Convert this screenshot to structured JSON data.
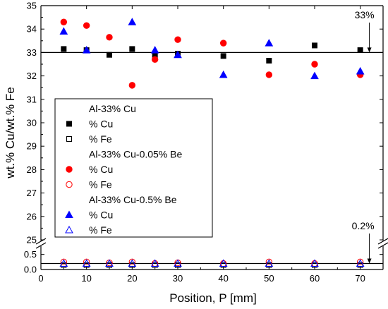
{
  "chart_data": {
    "type": "scatter",
    "title": "",
    "xlabel": "Position, P [mm]",
    "ylabel": "wt.% Cu/wt.% Fe",
    "xlim": [
      0,
      75
    ],
    "x_ticks": [
      0,
      10,
      20,
      30,
      40,
      50,
      60,
      70
    ],
    "ylim_upper": [
      25,
      35
    ],
    "y_ticks_upper": [
      25,
      26,
      27,
      28,
      29,
      30,
      31,
      32,
      33,
      34,
      35
    ],
    "ylim_lower": [
      0,
      0.75
    ],
    "y_ticks_lower": [
      0.0,
      0.5
    ],
    "y_tick_labels_lower": [
      "0.0",
      "0.5"
    ],
    "axis_break": "between 0.75 and 25",
    "reference_lines": [
      {
        "y": 33,
        "label": "33%"
      },
      {
        "y": 0.2,
        "label": "0.2%"
      }
    ],
    "annotations": [
      "33%",
      "0.2%"
    ],
    "legend_position": "left-middle",
    "series": [
      {
        "group": "Al-33% Cu",
        "name": "% Cu",
        "marker": "square-filled",
        "color": "#000000",
        "x": [
          5,
          10,
          15,
          20,
          25,
          30,
          40,
          50,
          60,
          70
        ],
        "y": [
          33.15,
          33.1,
          32.9,
          33.15,
          32.85,
          32.95,
          32.85,
          32.65,
          33.3,
          33.1
        ]
      },
      {
        "group": "Al-33% Cu",
        "name": "% Fe",
        "marker": "square-open",
        "color": "#000000",
        "x": [
          5,
          10,
          15,
          20,
          25,
          30,
          40,
          50,
          60,
          70
        ],
        "y": [
          0.15,
          0.15,
          0.15,
          0.15,
          0.15,
          0.15,
          0.15,
          0.15,
          0.15,
          0.15
        ]
      },
      {
        "group": "Al-33% Cu-0.05% Be",
        "name": "% Cu",
        "marker": "circle-filled",
        "color": "#ff0000",
        "x": [
          5,
          10,
          15,
          20,
          25,
          30,
          40,
          50,
          60,
          70
        ],
        "y": [
          34.3,
          34.15,
          33.65,
          31.6,
          32.7,
          33.55,
          33.4,
          32.05,
          32.5,
          32.05
        ]
      },
      {
        "group": "Al-33% Cu-0.05% Be",
        "name": "% Fe",
        "marker": "circle-open",
        "color": "#ff0000",
        "x": [
          5,
          10,
          15,
          20,
          25,
          30,
          40,
          50,
          60,
          70
        ],
        "y": [
          0.25,
          0.25,
          0.22,
          0.25,
          0.2,
          0.22,
          0.2,
          0.25,
          0.2,
          0.25
        ]
      },
      {
        "group": "Al-33% Cu-0.5% Be",
        "name": "% Cu",
        "marker": "triangle-filled",
        "color": "#0000ff",
        "x": [
          5,
          10,
          20,
          25,
          30,
          40,
          50,
          60,
          70
        ],
        "y": [
          33.9,
          33.1,
          34.3,
          33.1,
          32.9,
          32.05,
          33.4,
          32.0,
          32.2
        ]
      },
      {
        "group": "Al-33% Cu-0.5% Be",
        "name": "% Fe",
        "marker": "triangle-open",
        "color": "#0000ff",
        "x": [
          5,
          10,
          15,
          20,
          25,
          30,
          40,
          50,
          60,
          70
        ],
        "y": [
          0.2,
          0.2,
          0.2,
          0.2,
          0.2,
          0.2,
          0.2,
          0.2,
          0.2,
          0.2
        ]
      }
    ],
    "legend": [
      {
        "type": "header",
        "text": "Al-33% Cu"
      },
      {
        "type": "entry",
        "series": 0,
        "text": "% Cu"
      },
      {
        "type": "entry",
        "series": 1,
        "text": "% Fe"
      },
      {
        "type": "header",
        "text": "Al-33% Cu-0.05% Be"
      },
      {
        "type": "entry",
        "series": 2,
        "text": "% Cu"
      },
      {
        "type": "entry",
        "series": 3,
        "text": "% Fe"
      },
      {
        "type": "header",
        "text": "Al-33% Cu-0.5% Be"
      },
      {
        "type": "entry",
        "series": 4,
        "text": "% Cu"
      },
      {
        "type": "entry",
        "series": 5,
        "text": "% Fe"
      }
    ]
  }
}
